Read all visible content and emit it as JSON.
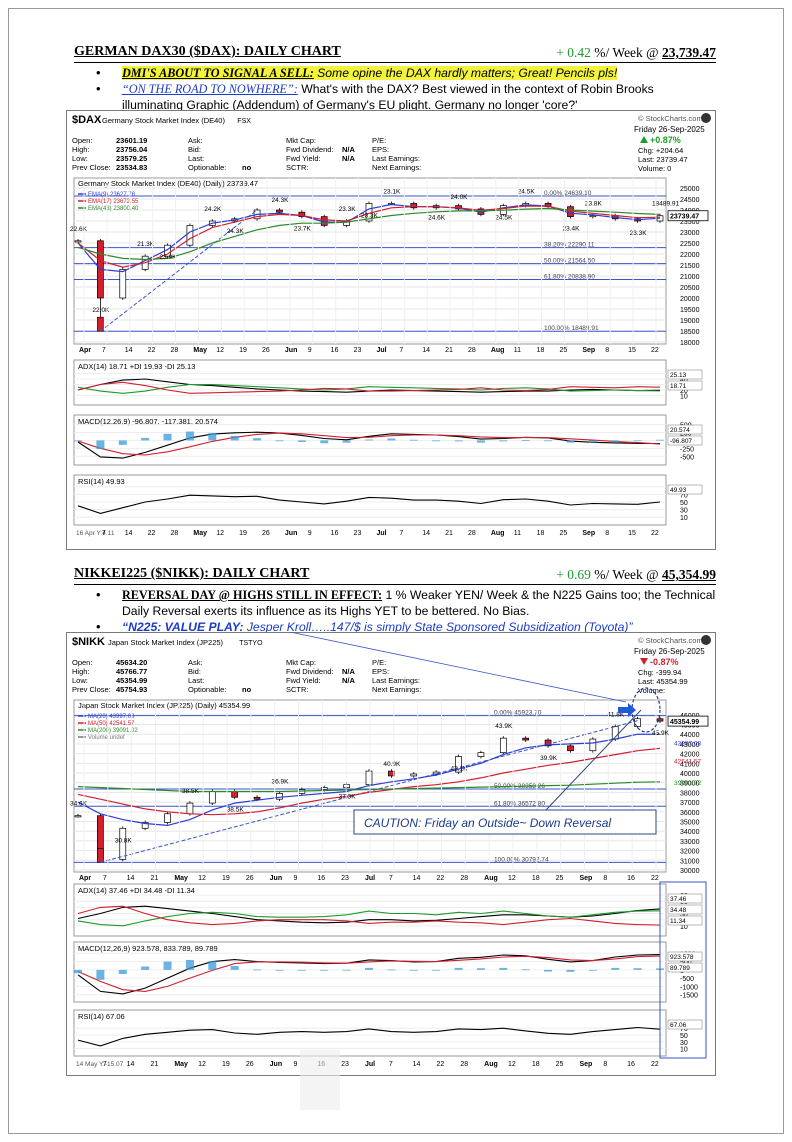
{
  "dax": {
    "title": "GERMAN DAX30 ($DAX): DAILY CHART",
    "week_change": "+ 0.42",
    "week_label": "%/ Week @",
    "level": "23,739.47",
    "bullets": [
      {
        "lead": "DMI'S ABOUT TO SIGNAL A SELL:",
        "text": " Some opine the DAX hardly matters; Great! Pencils pls!"
      },
      {
        "lead": "“ON THE ROAD TO NOWHERE”:",
        "text": "  What's with the DAX? Best viewed in the context of Robin Brooks illuminating Graphic (Addendum) of Germany's EU plight. Germany no longer 'core?'"
      }
    ],
    "panel": {
      "symbol": "$DAX",
      "name": "Germany Stock Market Index (DE40)",
      "exchange": "FSX",
      "stockcharts": "© StockCharts.com",
      "date": "Friday  26-Sep-2025",
      "change_pct": "+0.87%",
      "chg": "Chg:  +204.64",
      "last": "Last: 23739.47",
      "volume": "Volume:     0",
      "quotes": [
        [
          "Open:",
          "23601.19"
        ],
        [
          "High:",
          "23756.04"
        ],
        [
          "Low:",
          "23579.25"
        ],
        [
          "Prev Close:",
          "23534.83"
        ]
      ],
      "col2": [
        "Ask:",
        "Bid:",
        "Last:",
        "Optionable:"
      ],
      "col2_val": [
        "",
        "",
        "",
        "no"
      ],
      "col3": [
        "Mkt Cap:",
        "Fwd Dividend:",
        "Fwd Yield:",
        "SCTR:"
      ],
      "col3_val": [
        "",
        "N/A",
        "N/A",
        ""
      ],
      "col4": [
        "P/E:",
        "EPS:",
        "Last Earnings:",
        "Next Earnings:"
      ],
      "legend_title": "Germany Stock Market Index (DE40) (Daily) 23739.47",
      "legend": [
        "EMA(9) 23627.76",
        "EMA(17) 23672.55",
        "EMA(43) 23800.40"
      ],
      "price_labels": [
        "22.6K",
        "22.0K",
        "21.3K",
        "23.9K",
        "24.2K",
        "24.3K",
        "24.3K",
        "23.7K",
        "23.3K",
        "23.3K",
        "23.1K",
        "24.6K",
        "24.0K",
        "24.5K",
        "24.5K",
        "23.4K",
        "23.8K",
        "23.3K",
        "18489.91"
      ],
      "fib": [
        "0.00% 24639.10",
        "38.20% 22290.11",
        "50.00% 21564.50",
        "61.80% 20838.90",
        "100.00% 18489.91"
      ],
      "y_ticks": [
        "25000",
        "24500",
        "24000",
        "23500",
        "23000",
        "22500",
        "22000",
        "21500",
        "21000",
        "20500",
        "20000",
        "19500",
        "19000",
        "18500",
        "18000"
      ],
      "last_tag": "23739.47",
      "x_ticks": [
        "Apr",
        "7",
        "14",
        "22",
        "28",
        "May",
        "12",
        "19",
        "26",
        "Jun",
        "9",
        "16",
        "23",
        "Jul",
        "7",
        "14",
        "21",
        "28",
        "Aug",
        "11",
        "18",
        "25",
        "Sep",
        "8",
        "15",
        "22"
      ],
      "adx_label": "ADX(14) 18.71 +DI 19.93 -DI 25.13",
      "adx_ticks": [
        "50",
        "40",
        "30",
        "20",
        "10"
      ],
      "adx_tags": [
        "25.13",
        "18.71"
      ],
      "macd_label": "MACD(12,26,9) -96.807, -117.381, 20.574",
      "macd_ticks": [
        "500",
        "250",
        "0",
        "-250",
        "-500"
      ],
      "macd_tags": [
        "20.574",
        "-96.807"
      ],
      "rsi_label": "RSI(14) 49.93",
      "rsi_ticks": [
        "90",
        "70",
        "50",
        "30",
        "10"
      ],
      "rsi_tag": "49.93",
      "footer_date": "16 Apr Y:4.11"
    }
  },
  "nikkei": {
    "title": "NIKKEI225 ($NIKK): DAILY CHART",
    "week_change": "+ 0.69",
    "week_label": "%/ Week @",
    "level": "45,354.99",
    "bullets": [
      {
        "lead": "REVERSAL DAY @ HIGHS STILL IN EFFECT:",
        "text": " 1 % Weaker YEN/ Week & the N225 Gains too; the Technical Daily Reversal exerts its influence as its Highs YET to be bettered. No Bias."
      },
      {
        "lead": "“N225: VALUE PLAY:",
        "text": " Jesper Kroll…..147/$ is simply State Sponsored Subsidization (Toyota)”"
      }
    ],
    "panel": {
      "symbol": "$NIKK",
      "name": "Japan Stock Market Index (JP225)",
      "exchange": "TSTYO",
      "stockcharts": "© StockCharts.com",
      "date": "Friday  26-Sep-2025",
      "change_pct": "-0.87%",
      "chg": "Chg:  -399.94",
      "last": "Last: 45354.99",
      "volume": "Volume:",
      "quotes": [
        [
          "Open:",
          "45634.20"
        ],
        [
          "High:",
          "45766.77"
        ],
        [
          "Low:",
          "45354.99"
        ],
        [
          "Prev Close:",
          "45754.93"
        ]
      ],
      "col2": [
        "Ask:",
        "Bid:",
        "Last:",
        "Optionable:"
      ],
      "col2_val": [
        "",
        "",
        "",
        "no"
      ],
      "col3": [
        "Mkt Cap:",
        "Fwd Dividend:",
        "Fwd Yield:",
        "SCTR:"
      ],
      "col3_val": [
        "",
        "N/A",
        "N/A",
        ""
      ],
      "col4": [
        "P/E:",
        "EPS:",
        "Last Earnings:",
        "Next Earnings:"
      ],
      "legend_title": "Japan Stock Market Index (JP225) (Daily) 45354.99",
      "legend": [
        "MA(20) 43997.08",
        "MA(50) 42541.57",
        "MA(200) 39091.02",
        "Volume undef"
      ],
      "price_labels": [
        "34.6K",
        "30.8K",
        "38.5K",
        "38.5K",
        "36.9K",
        "37.3K",
        "40.9K",
        "42.1K",
        "43.9K",
        "39.9K",
        "41.8K",
        "45.9K"
      ],
      "fib": [
        "0.00% 45923.70",
        "50.00% 38358.26",
        "61.80% 36572.80",
        "100.00% 30792.74"
      ],
      "y_ticks": [
        "46000",
        "45000",
        "44000",
        "43000",
        "42000",
        "41000",
        "40000",
        "39000",
        "38000",
        "37000",
        "36000",
        "35000",
        "34000",
        "33000",
        "32000",
        "31000",
        "30000"
      ],
      "last_tag": "45354.99",
      "ma_tags": [
        "43997.08",
        "42541.57",
        "39091.02"
      ],
      "caution": "CAUTION: Friday an Outside~ Down Reversal",
      "x_ticks": [
        "Apr",
        "7",
        "14",
        "21",
        "May",
        "12",
        "19",
        "26",
        "Jun",
        "9",
        "16",
        "23",
        "Jul",
        "7",
        "14",
        "22",
        "28",
        "Aug",
        "12",
        "18",
        "25",
        "Sep",
        "8",
        "16",
        "22"
      ],
      "adx_label": "ADX(14) 37.46 +DI 34.48 -DI 11.34",
      "adx_ticks": [
        "60",
        "50",
        "40",
        "30",
        "20",
        "10"
      ],
      "adx_tags": [
        "37.46",
        "34.48",
        "11.34"
      ],
      "macd_label": "MACD(12,26,9) 923.578, 833.789, 89.789",
      "macd_ticks": [
        "1000",
        "500",
        "0",
        "-500",
        "-1000",
        "-1500"
      ],
      "macd_tags": [
        "923.578",
        "89.789"
      ],
      "rsi_label": "RSI(14) 67.06",
      "rsi_ticks": [
        "70",
        "50",
        "30",
        "10"
      ],
      "rsi_tag": "67.06",
      "footer_date": "14 May Y:-15.07"
    }
  },
  "colors": {
    "up": "#ffffff",
    "down": "#d11f2e",
    "ema9": "#2b3dd6",
    "ema17": "#d11f2e",
    "ema43": "#2a8a2a",
    "fib": "#3a55c8",
    "hist": "#3a9ad8",
    "positive": "#1a9c2a"
  },
  "chart_data": [
    {
      "type": "line",
      "title": "Germany Stock Market Index (DE40) (Daily) 23739.47",
      "x": [
        "Apr 1",
        "Apr 7",
        "Apr 14",
        "Apr 22",
        "Apr 28",
        "May 5",
        "May 12",
        "May 19",
        "May 26",
        "Jun 2",
        "Jun 9",
        "Jun 16",
        "Jun 23",
        "Jun 30",
        "Jul 7",
        "Jul 14",
        "Jul 21",
        "Jul 28",
        "Aug 4",
        "Aug 11",
        "Aug 18",
        "Aug 25",
        "Sep 1",
        "Sep 8",
        "Sep 15",
        "Sep 22",
        "Sep 26"
      ],
      "series": [
        {
          "name": "Close",
          "values": [
            22600,
            20000,
            21300,
            21900,
            22400,
            23300,
            23500,
            23600,
            24000,
            23900,
            23700,
            23300,
            23500,
            24300,
            24300,
            24100,
            24200,
            24050,
            23800,
            24200,
            24300,
            24150,
            23700,
            23750,
            23600,
            23500,
            23739
          ]
        },
        {
          "name": "EMA(9)",
          "values": [
            22500,
            21300,
            21200,
            21700,
            22200,
            23000,
            23400,
            23550,
            23800,
            23850,
            23750,
            23450,
            23450,
            24050,
            24250,
            24150,
            24150,
            24080,
            23900,
            24100,
            24230,
            24180,
            23850,
            23780,
            23660,
            23560,
            23628
          ]
        },
        {
          "name": "EMA(17)",
          "values": [
            22500,
            21700,
            21400,
            21600,
            22000,
            22700,
            23200,
            23450,
            23700,
            23800,
            23750,
            23550,
            23500,
            23850,
            24100,
            24150,
            24150,
            24100,
            23980,
            24070,
            24180,
            24170,
            23950,
            23850,
            23750,
            23650,
            23673
          ]
        },
        {
          "name": "EMA(43)",
          "values": [
            22300,
            22000,
            21800,
            21750,
            21800,
            22100,
            22500,
            22800,
            23100,
            23300,
            23400,
            23400,
            23450,
            23600,
            23750,
            23850,
            23920,
            23960,
            23960,
            23990,
            24040,
            24070,
            24000,
            23950,
            23900,
            23840,
            23800
          ]
        }
      ],
      "ylim": [
        18000,
        25000
      ],
      "fib_levels": [
        24639.1,
        22290.11,
        21564.5,
        20838.9,
        18489.91
      ],
      "low": 18489.91,
      "adx": {
        "ylim": [
          0,
          60
        ],
        "adx": [
          20,
          30,
          38,
          40,
          35,
          30,
          28,
          25,
          22,
          20,
          18,
          17,
          16,
          18,
          20,
          19,
          18,
          17,
          16,
          17,
          18,
          18,
          20,
          21,
          20,
          19,
          18.71
        ],
        "pdi": [
          25,
          18,
          14,
          18,
          25,
          30,
          30,
          28,
          26,
          24,
          22,
          20,
          22,
          26,
          25,
          24,
          23,
          22,
          20,
          23,
          24,
          22,
          18,
          19,
          20,
          19,
          19.93
        ],
        "mdi": [
          20,
          30,
          34,
          28,
          20,
          14,
          15,
          16,
          17,
          18,
          20,
          23,
          22,
          18,
          18,
          19,
          20,
          21,
          24,
          20,
          19,
          21,
          26,
          25,
          24,
          26,
          25.13
        ]
      },
      "macd": {
        "ylim": [
          -650,
          550
        ],
        "macd": [
          -50,
          -520,
          -560,
          -380,
          -150,
          80,
          200,
          240,
          260,
          230,
          160,
          60,
          20,
          130,
          210,
          190,
          170,
          120,
          40,
          60,
          100,
          80,
          -20,
          -60,
          -80,
          -95,
          -96.807
        ],
        "signal": [
          -20,
          -250,
          -420,
          -460,
          -360,
          -200,
          -30,
          100,
          190,
          230,
          210,
          150,
          90,
          100,
          150,
          170,
          170,
          150,
          110,
          90,
          90,
          85,
          50,
          10,
          -30,
          -70,
          -117.381
        ]
      },
      "rsi": {
        "ylim": [
          0,
          100
        ],
        "values": [
          40,
          20,
          35,
          50,
          58,
          68,
          66,
          64,
          65,
          55,
          50,
          45,
          52,
          62,
          60,
          55,
          55,
          52,
          46,
          56,
          58,
          52,
          42,
          46,
          45,
          44,
          49.93
        ]
      }
    },
    {
      "type": "line",
      "title": "Japan Stock Market Index (JP225) (Daily) 45354.99",
      "x": [
        "Apr 1",
        "Apr 7",
        "Apr 14",
        "Apr 21",
        "Apr 28",
        "May 5",
        "May 12",
        "May 19",
        "May 26",
        "Jun 2",
        "Jun 9",
        "Jun 16",
        "Jun 23",
        "Jun 30",
        "Jul 7",
        "Jul 14",
        "Jul 22",
        "Jul 28",
        "Aug 4",
        "Aug 12",
        "Aug 18",
        "Aug 25",
        "Sep 1",
        "Sep 8",
        "Sep 16",
        "Sep 22",
        "Sep 26"
      ],
      "series": [
        {
          "name": "Close",
          "values": [
            35600,
            31100,
            34300,
            34900,
            35800,
            36900,
            38100,
            37500,
            37300,
            37900,
            38300,
            38500,
            38800,
            40200,
            39700,
            39900,
            40100,
            41700,
            42100,
            43600,
            43400,
            42800,
            42300,
            43500,
            44800,
            45600,
            45355
          ]
        },
        {
          "name": "MA(20)",
          "values": [
            37000,
            35800,
            35200,
            34800,
            34600,
            35200,
            36200,
            36900,
            37200,
            37500,
            37700,
            37900,
            38100,
            38700,
            39100,
            39400,
            39800,
            40400,
            41000,
            41900,
            42600,
            42900,
            43000,
            43100,
            43500,
            44000,
            43997
          ]
        },
        {
          "name": "MA(50)",
          "values": [
            37800,
            37300,
            36800,
            36300,
            36000,
            35800,
            35700,
            35800,
            36000,
            36400,
            36900,
            37300,
            37600,
            38000,
            38300,
            38600,
            38800,
            39100,
            39500,
            40000,
            40400,
            40800,
            41100,
            41500,
            41900,
            42300,
            42542
          ]
        },
        {
          "name": "MA(200)",
          "values": [
            38600,
            38500,
            38400,
            38300,
            38200,
            38100,
            38100,
            38100,
            38100,
            38100,
            38150,
            38200,
            38250,
            38300,
            38350,
            38400,
            38450,
            38500,
            38550,
            38600,
            38650,
            38700,
            38750,
            38850,
            38950,
            39050,
            39091
          ]
        }
      ],
      "ylim": [
        30000,
        46500
      ],
      "fib_levels": [
        45923.7,
        38358.26,
        36572.8,
        30792.74
      ],
      "low": 30792.74,
      "adx": {
        "ylim": [
          0,
          65
        ],
        "adx": [
          22,
          30,
          40,
          42,
          38,
          34,
          30,
          25,
          20,
          18,
          16,
          15,
          16,
          20,
          20,
          18,
          19,
          22,
          25,
          28,
          28,
          26,
          24,
          26,
          30,
          35,
          37.46
        ],
        "pdi": [
          18,
          12,
          10,
          18,
          25,
          30,
          32,
          30,
          25,
          24,
          24,
          25,
          28,
          34,
          30,
          30,
          28,
          32,
          30,
          34,
          30,
          26,
          24,
          28,
          32,
          34,
          34.48
        ],
        "mdi": [
          30,
          40,
          42,
          30,
          20,
          15,
          12,
          14,
          18,
          20,
          20,
          20,
          18,
          14,
          16,
          16,
          18,
          16,
          15,
          12,
          16,
          20,
          22,
          18,
          14,
          12,
          11.34
        ]
      },
      "macd": {
        "ylim": [
          -1700,
          1200
        ],
        "macd": [
          -300,
          -1300,
          -1450,
          -1100,
          -500,
          100,
          500,
          620,
          500,
          450,
          420,
          380,
          400,
          600,
          560,
          480,
          500,
          700,
          760,
          900,
          850,
          640,
          480,
          560,
          780,
          900,
          923.578
        ],
        "signal": [
          -100,
          -700,
          -1200,
          -1300,
          -1000,
          -500,
          -30,
          380,
          480,
          480,
          460,
          420,
          400,
          480,
          540,
          520,
          500,
          580,
          660,
          780,
          820,
          740,
          600,
          560,
          660,
          800,
          833.789
        ]
      },
      "rsi": {
        "ylim": [
          0,
          100
        ],
        "values": [
          35,
          18,
          40,
          52,
          58,
          64,
          66,
          56,
          52,
          58,
          60,
          58,
          60,
          68,
          60,
          58,
          60,
          68,
          66,
          70,
          62,
          55,
          52,
          60,
          66,
          72,
          67.06
        ]
      }
    }
  ]
}
